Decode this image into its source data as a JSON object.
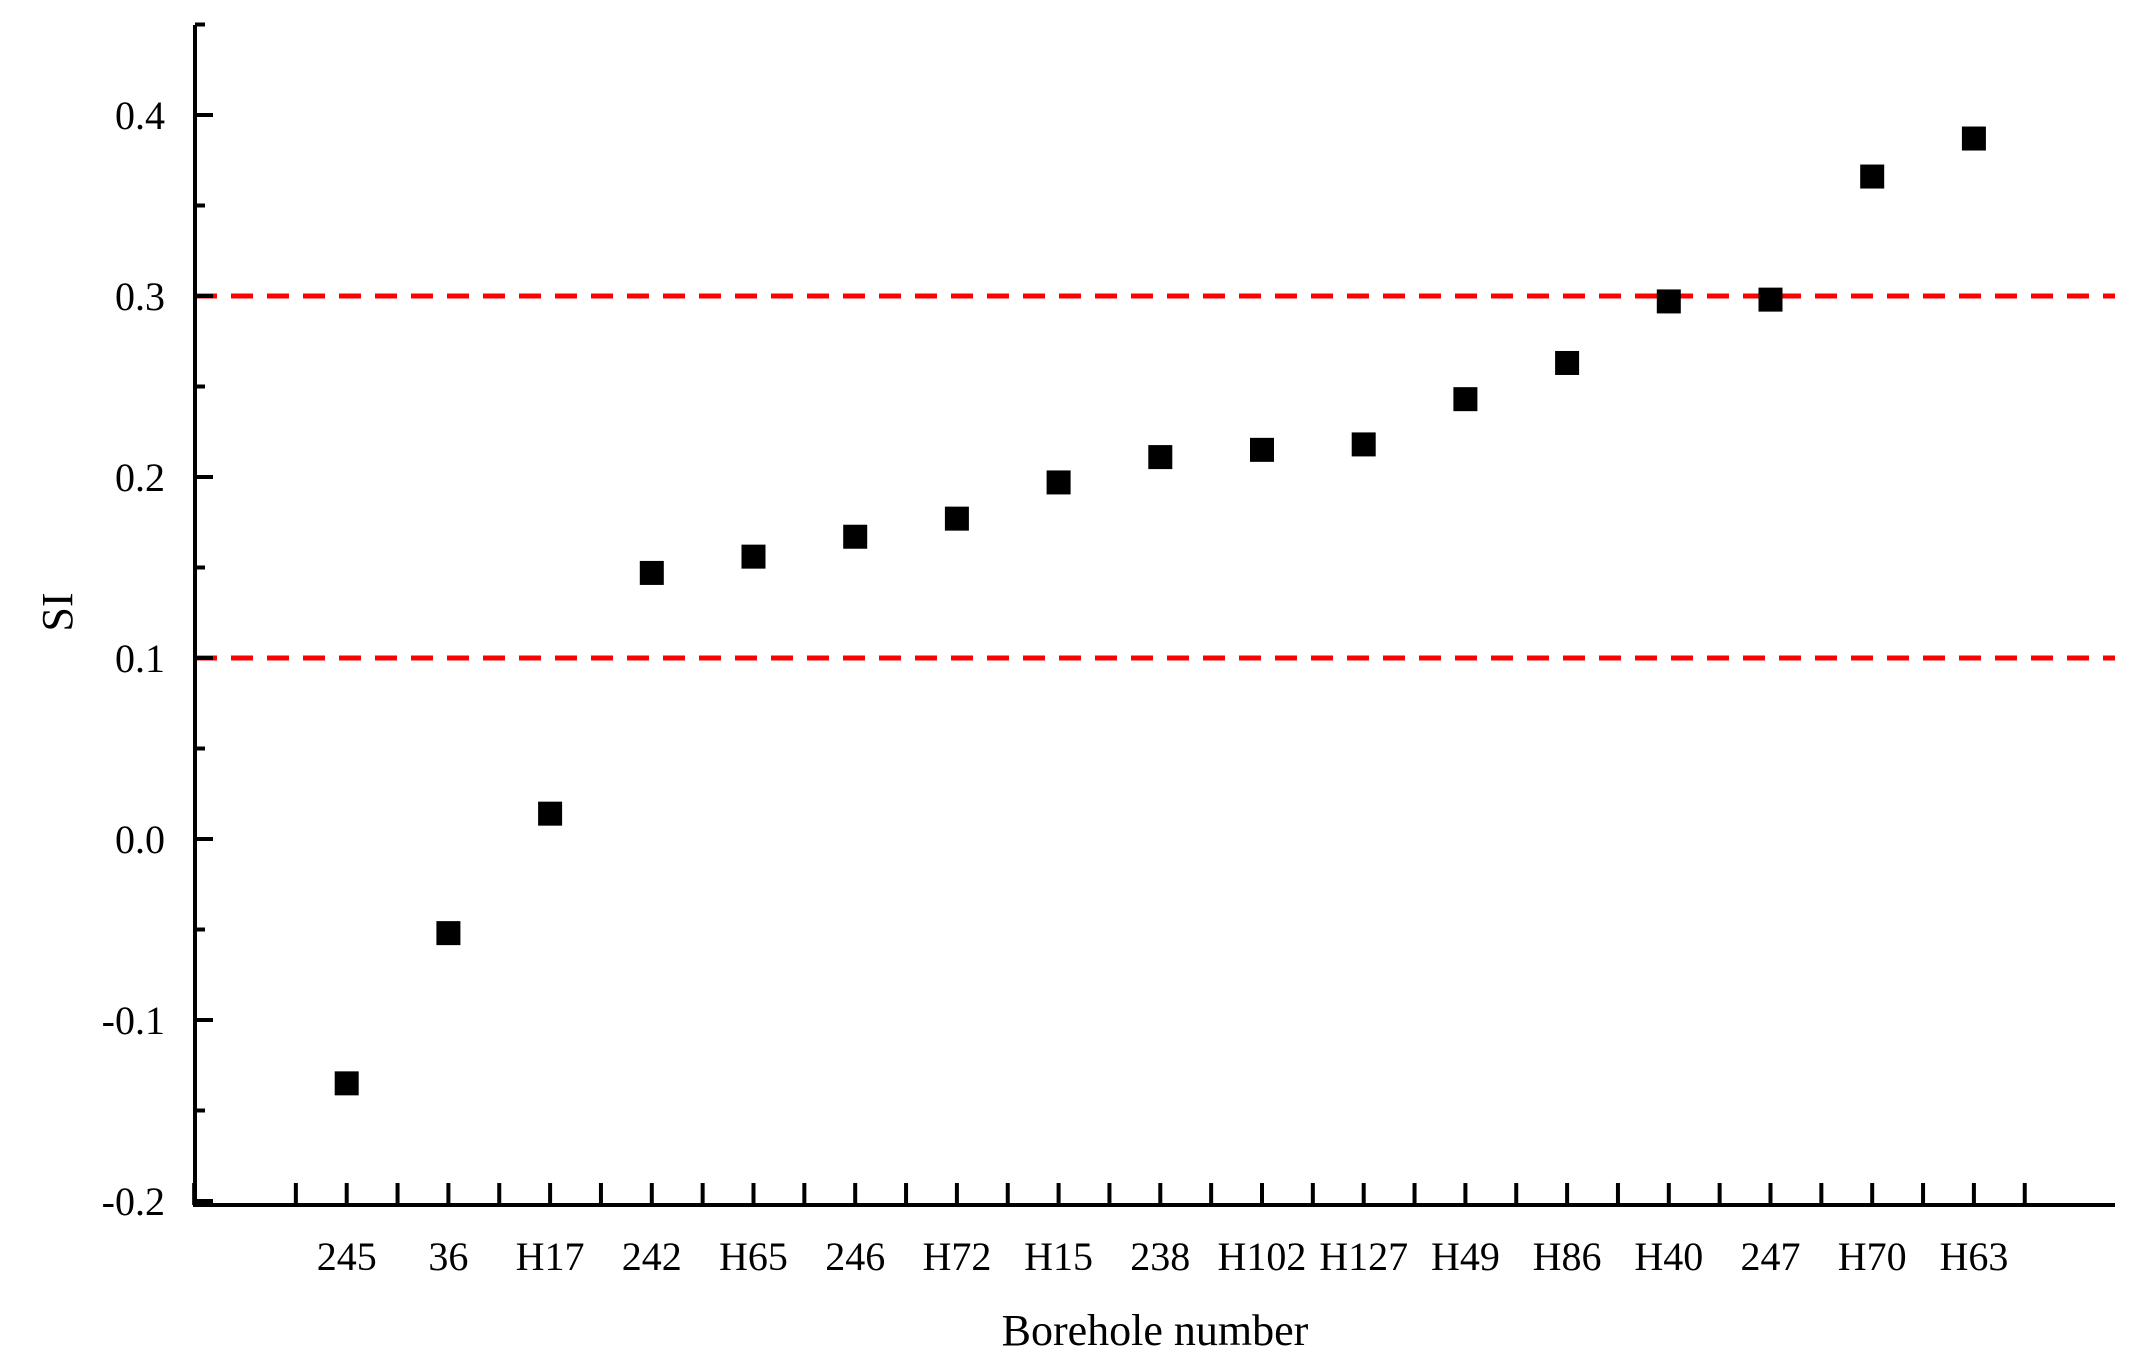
{
  "chart_data": {
    "type": "scatter",
    "title": "",
    "xlabel": "Borehole number",
    "ylabel": "SI",
    "categories": [
      "245",
      "36",
      "H17",
      "242",
      "H65",
      "246",
      "H72",
      "H15",
      "238",
      "H102",
      "H127",
      "H49",
      "H86",
      "H40",
      "247",
      "H70",
      "H63"
    ],
    "series": [
      {
        "values": [
          -0.135,
          -0.052,
          0.014,
          0.147,
          0.156,
          0.167,
          0.177,
          0.197,
          0.211,
          0.215,
          0.218,
          0.243,
          0.263,
          0.297,
          0.298,
          0.366,
          0.387
        ],
        "marker": "square",
        "color": "#000000"
      }
    ],
    "ylim": [
      -0.2,
      0.45
    ],
    "yticks": [
      "-0.2",
      "-0.1",
      "0.0",
      "0.1",
      "0.2",
      "0.3",
      "0.4"
    ],
    "ytick_values": [
      -0.2,
      -0.1,
      0.0,
      0.1,
      0.2,
      0.3,
      0.4
    ],
    "reference_lines": [
      {
        "y": 0.1,
        "style": "dashed",
        "color": "#ff0000"
      },
      {
        "y": 0.3,
        "style": "dashed",
        "color": "#ff0000"
      }
    ],
    "grid": false,
    "legend": "none"
  }
}
